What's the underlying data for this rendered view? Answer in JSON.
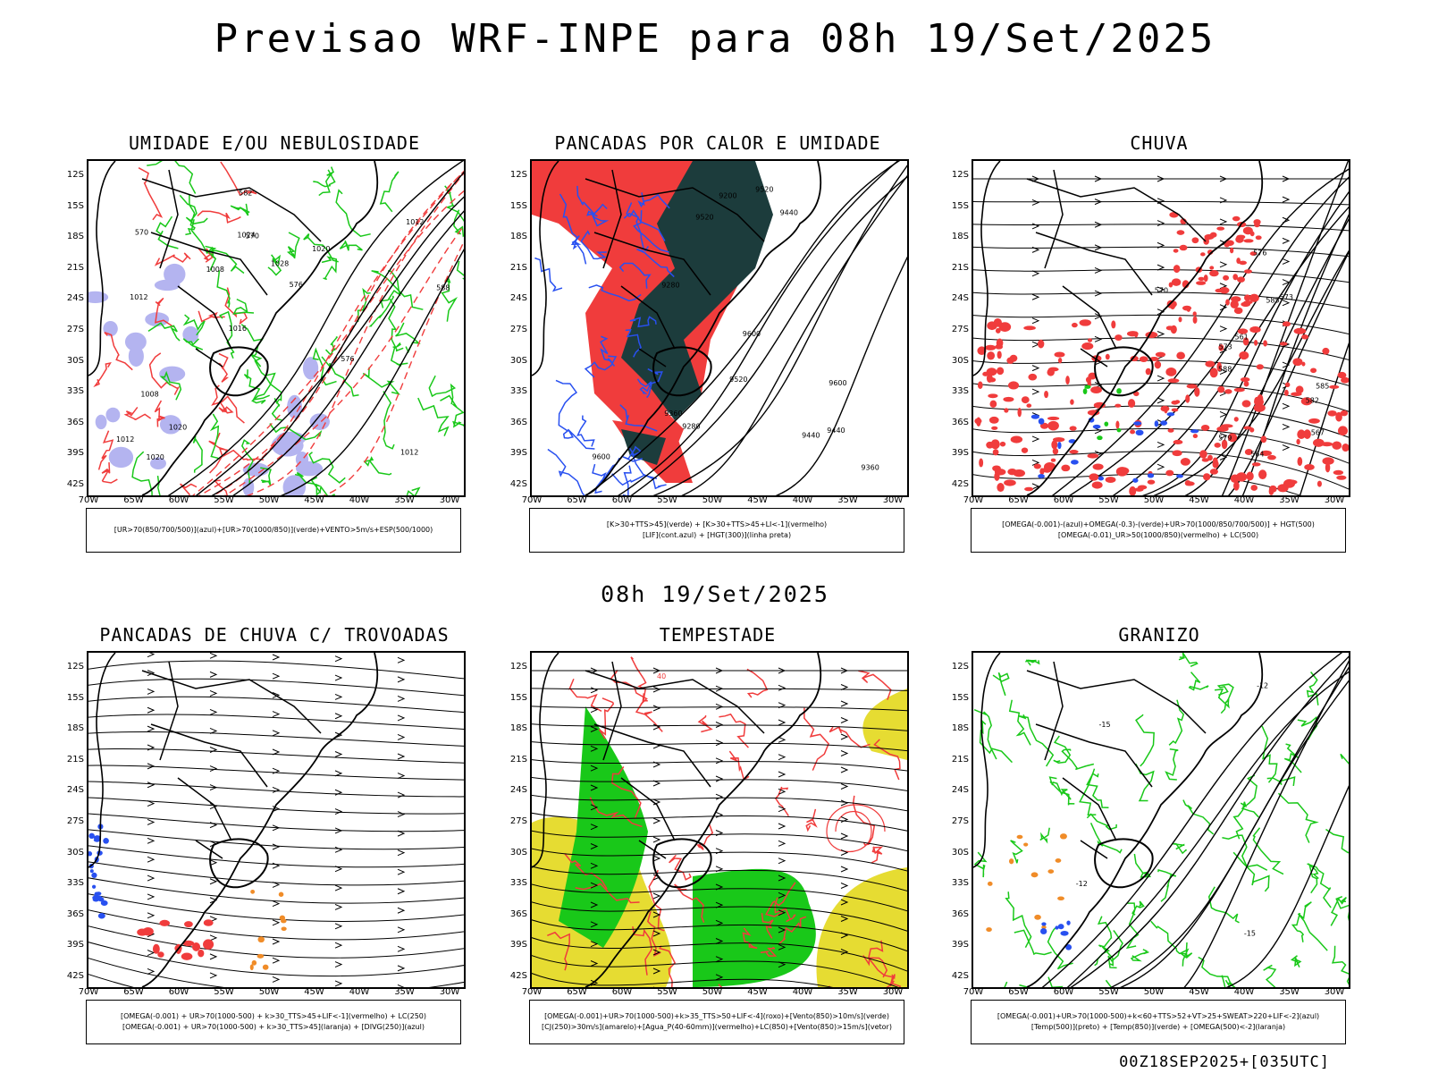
{
  "header": {
    "title": "Previsao WRF-INPE  para 08h 19/Set/2025"
  },
  "mid_title": "08h 19/Set/2025",
  "footer": "00Z18SEP2025+[035UTC]",
  "lat_labels": [
    "12S",
    "15S",
    "18S",
    "21S",
    "24S",
    "27S",
    "30S",
    "33S",
    "36S",
    "39S",
    "42S"
  ],
  "lon_labels": [
    "70W",
    "65W",
    "60W",
    "55W",
    "50W",
    "45W",
    "40W",
    "35W",
    "30W"
  ],
  "panels": [
    {
      "title": "UMIDADE E/OU NEBULOSIDADE",
      "legend": [
        "[UR>70(850/700/500)](azul)+[UR>70(1000/850)](verde)+VENTO>5m/s+ESP(500/1000)"
      ],
      "contour_labels": [
        "1012",
        "1012",
        "1012",
        "1016",
        "1020",
        "1020",
        "1024",
        "1028",
        "1008",
        "1008",
        "1012",
        "1020",
        "570",
        "576",
        "576",
        "570",
        "582",
        "588"
      ]
    },
    {
      "title": "PANCADAS POR CALOR E UMIDADE",
      "legend": [
        "[K>30+TTS>45](verde) + [K>30+TTS>45+LI<-1](vermelho)",
        "[LIF](cont.azul) + [HGT(300)](linha preta)"
      ],
      "contour_labels": [
        "9600",
        "9600",
        "9600",
        "9520",
        "9520",
        "9520",
        "9440",
        "9440",
        "9440",
        "9360",
        "9360",
        "9280",
        "9280",
        "9200"
      ]
    },
    {
      "title": "CHUVA",
      "legend": [
        "[OMEGA(-0.001)-(azul)+OMEGA(-0.3)-(verde)+UR>70(1000/850/700/500)] + HGT(500)",
        "[OMEGA(-0.01)_UR>50(1000/850)(vermelho) + LC(500)"
      ],
      "contour_labels": [
        "588",
        "585",
        "585",
        "582",
        "579",
        "576",
        "573",
        "570",
        "567",
        "564",
        "561",
        "573"
      ]
    },
    {
      "title": "PANCADAS DE CHUVA C/ TROVOADAS",
      "legend": [
        "[OMEGA(-0.001) + UR>70(1000-500) + k>30_TTS>45+LIF<-1](vermelho) + LC(250)",
        "[OMEGA(-0.001) + UR>70(1000-500) + k>30_TTS>45](laranja) + [DIVG(250)](azul)"
      ],
      "contour_labels": []
    },
    {
      "title": "TEMPESTADE",
      "legend": [
        "[OMEGA(-0.001)+UR>70(1000-500)+k>35_TTS>50+LIF<-4](roxo)+[Vento(850)>10m/s](verde)",
        "[CJ(250)>30m/s](amarelo)+[Agua_P(40-60mm)](vermelho)+LC(850)+[Vento(850)>15m/s](vetor)"
      ],
      "contour_labels": [
        "40"
      ]
    },
    {
      "title": "GRANIZO",
      "legend": [
        "[OMEGA(-0.001)+UR>70(1000-500)+k<60+TTS>52+VT>25+SWEAT>220+LIF<-2](azul)",
        "[Temp(500)](preto) + [Temp(850)](verde) + [OMEGA(500)<-2](laranja)"
      ],
      "contour_labels": [
        "-12",
        "-12",
        "-15",
        "-15"
      ]
    }
  ],
  "colors": {
    "red": "#f03c3c",
    "green": "#19c819",
    "blue": "#2850f0",
    "darkteal": "#1c3c3c",
    "yellow": "#e6dc32",
    "lavender": "#b4b4f0",
    "orange": "#f08c28"
  }
}
